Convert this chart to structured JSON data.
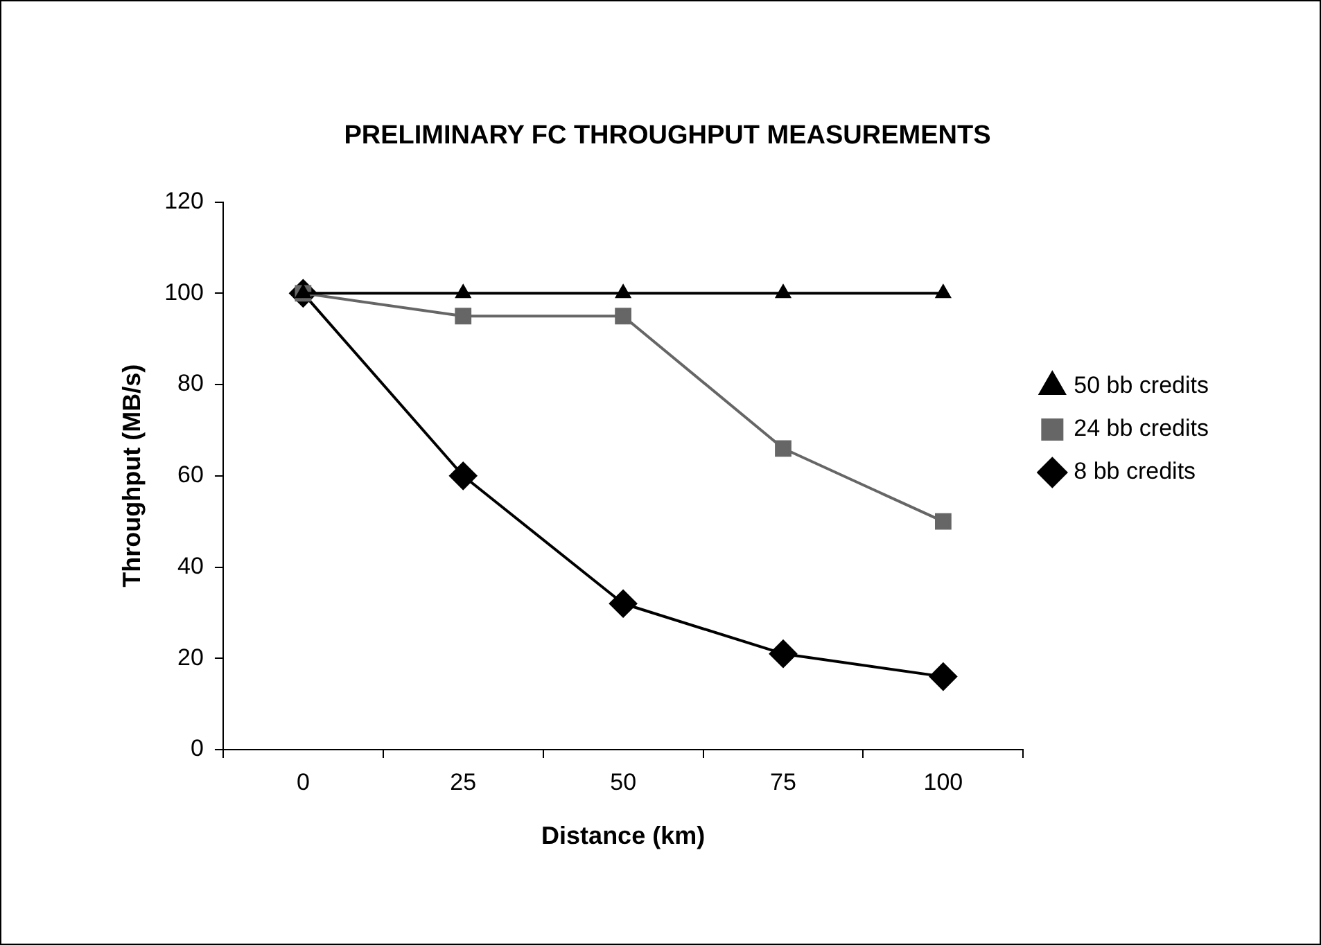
{
  "chart_data": {
    "type": "line",
    "title": "PRELIMINARY FC THROUGHPUT MEASUREMENTS",
    "xlabel": "Distance (km)",
    "ylabel": "Throughput (MB/s)",
    "categories": [
      "0",
      "25",
      "50",
      "75",
      "100"
    ],
    "series": [
      {
        "name": "8 bb credits",
        "color": "#000000",
        "marker": "diamond",
        "values": [
          100,
          60,
          32,
          21,
          16
        ]
      },
      {
        "name": "24 bb credits",
        "color": "#666666",
        "marker": "square",
        "values": [
          100,
          95,
          95,
          66,
          50
        ]
      },
      {
        "name": "50 bb credits",
        "color": "#000000",
        "marker": "triangle",
        "values": [
          100,
          100,
          100,
          100,
          100
        ]
      }
    ],
    "ylim": [
      0,
      120
    ],
    "yticks": [
      0,
      20,
      40,
      60,
      80,
      100,
      120
    ],
    "grid": false,
    "legend": "right",
    "line_style": "solid"
  }
}
